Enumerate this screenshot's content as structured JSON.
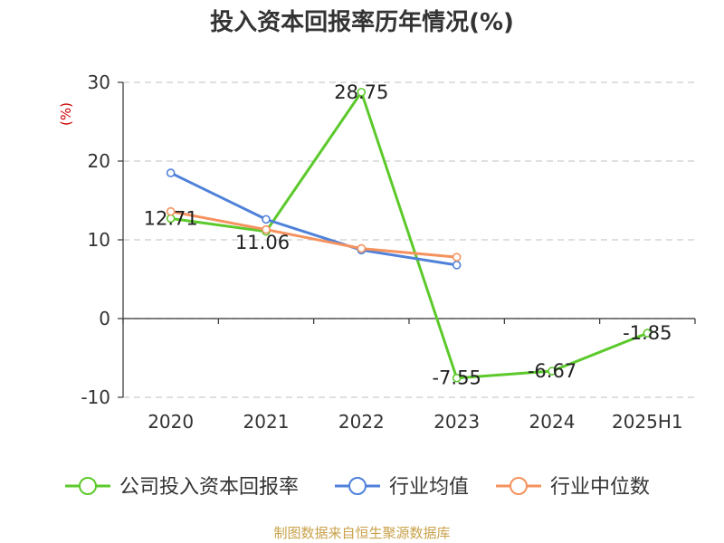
{
  "chart_data": {
    "type": "line",
    "title": "投入资本回报率历年情况(%)",
    "y_unit_label": "(%)",
    "categories": [
      "2020",
      "2021",
      "2022",
      "2023",
      "2024",
      "2025H1"
    ],
    "ylim": [
      -10,
      30
    ],
    "yticks": [
      "30",
      "20",
      "10",
      "0",
      "-10"
    ],
    "grid": true,
    "legend_position": "bottom",
    "series": [
      {
        "name": "公司投入资本回报率",
        "color": "#5cc92b",
        "values": [
          12.71,
          11.06,
          28.75,
          -7.55,
          -6.67,
          -1.85
        ],
        "labels": [
          "12.71",
          "11.06",
          "28.75",
          "-7.55",
          "-6.67",
          "-1.85"
        ]
      },
      {
        "name": "行业均值",
        "color": "#4f81d9",
        "values": [
          18.5,
          12.6,
          8.7,
          6.8,
          null,
          null
        ]
      },
      {
        "name": "行业中位数",
        "color": "#f5925e",
        "values": [
          13.6,
          11.3,
          8.9,
          7.8,
          null,
          null
        ]
      }
    ],
    "source": "制图数据来自恒生聚源数据库"
  }
}
